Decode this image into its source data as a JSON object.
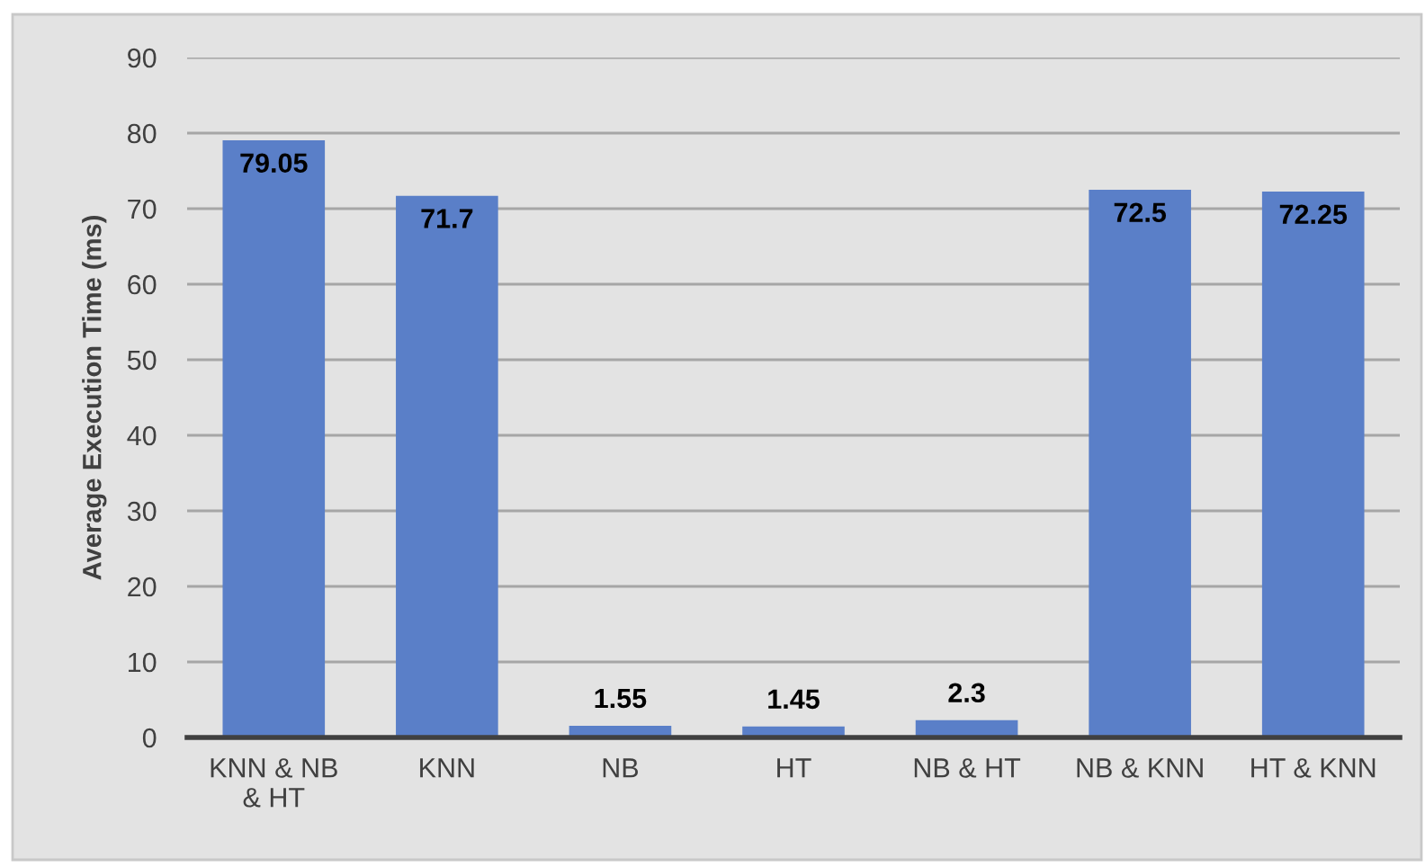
{
  "chart_data": {
    "type": "bar",
    "ylabel": "Average Execution Time (ms)",
    "categories": [
      "KNN & NB\n& HT",
      "KNN",
      "NB",
      "HT",
      "NB & HT",
      "NB & KNN",
      "HT & KNN"
    ],
    "values": [
      79.05,
      71.7,
      1.55,
      1.45,
      2.3,
      72.5,
      72.25
    ],
    "color": "#5a7fc8",
    "ylim": [
      0,
      90
    ],
    "yticks": [
      0,
      10,
      20,
      30,
      40,
      50,
      60,
      70,
      80,
      90
    ],
    "grid": "y",
    "data_labels": true
  }
}
